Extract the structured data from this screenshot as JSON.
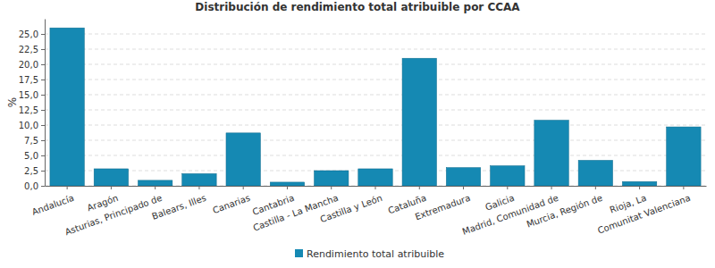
{
  "chart_data": {
    "type": "bar",
    "title": "Distribución de rendimiento total atribuible por CCAA",
    "y_label": "%",
    "categories": [
      "Andalucía",
      "Aragón",
      "Asturias, Principado de",
      "Balears, Illes",
      "Canarias",
      "Cantabria",
      "Castilla - La Mancha",
      "Castilla y León",
      "Cataluña",
      "Extremadura",
      "Galicia",
      "Madrid, Comunidad de",
      "Murcia, Región de",
      "Rioja, La",
      "Comunitat Valenciana"
    ],
    "series": [
      {
        "name": "Rendimiento total atribuible",
        "color": "#1589b3",
        "values": [
          26.0,
          2.8,
          0.9,
          2.0,
          8.7,
          0.6,
          2.5,
          2.8,
          21.0,
          3.0,
          3.3,
          10.8,
          4.2,
          0.7,
          9.7
        ]
      }
    ],
    "ylim": [
      0,
      27.5
    ],
    "yticks": [
      {
        "value": 0,
        "label": "0,0"
      },
      {
        "value": 2.5,
        "label": "2,5"
      },
      {
        "value": 5,
        "label": "5,0"
      },
      {
        "value": 7.5,
        "label": "7,5"
      },
      {
        "value": 10,
        "label": "10,0"
      },
      {
        "value": 12.5,
        "label": "12,5"
      },
      {
        "value": 15,
        "label": "15,0"
      },
      {
        "value": 17.5,
        "label": "17,5"
      },
      {
        "value": 20,
        "label": "20,0"
      },
      {
        "value": 22.5,
        "label": "22,5"
      },
      {
        "value": 25,
        "label": "25,0"
      }
    ],
    "grid": true,
    "legend": "bottom"
  }
}
